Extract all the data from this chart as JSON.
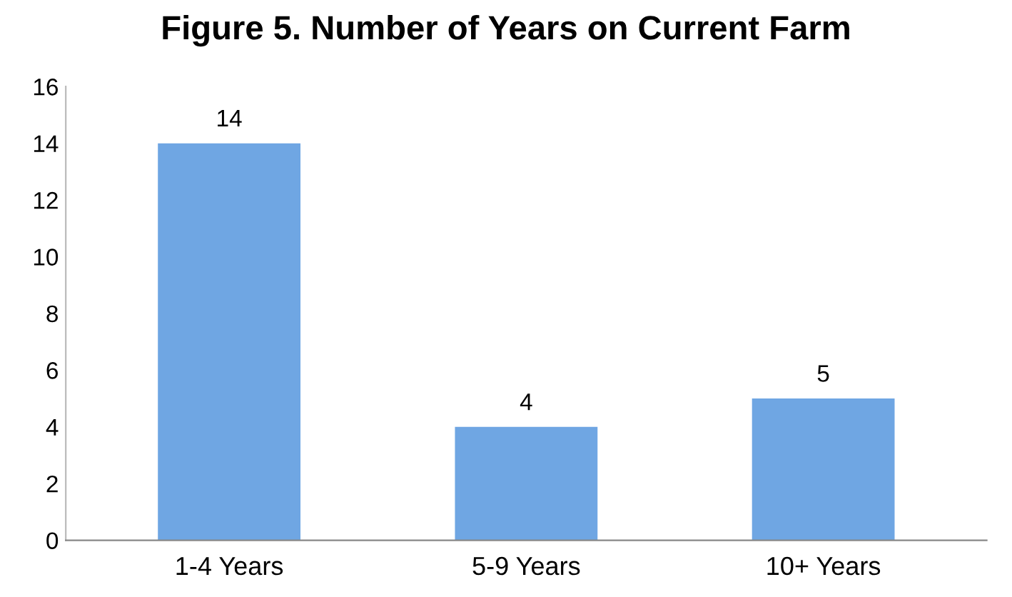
{
  "chart_data": {
    "type": "bar",
    "title": "Figure 5. Number of Years on Current Farm",
    "categories": [
      "1-4 Years",
      "5-9 Years",
      "10+ Years"
    ],
    "values": [
      14,
      4,
      5
    ],
    "color": "#6fa6e3",
    "ylim": [
      0,
      16
    ],
    "yticks": [
      0,
      2,
      4,
      6,
      8,
      10,
      12,
      14,
      16
    ],
    "grid": false,
    "data_labels": true
  }
}
